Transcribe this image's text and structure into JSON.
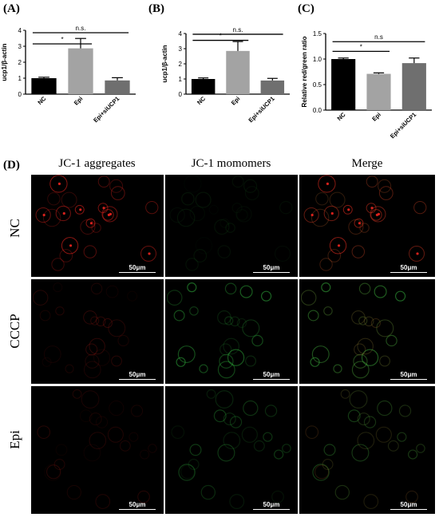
{
  "panel_letters": {
    "a": "(A)",
    "b": "(B)",
    "c": "(C)",
    "d": "(D)"
  },
  "chart_data": [
    {
      "type": "bar",
      "ylabel": "ucp1/β-actin",
      "categories": [
        "NC",
        "Epi",
        "Epi+siUCP1"
      ],
      "values": [
        1.0,
        2.87,
        0.86
      ],
      "errors": [
        0.06,
        0.62,
        0.17
      ],
      "bar_colors": [
        "#000000",
        "#a3a3a3",
        "#6f6f6f"
      ],
      "ylim": [
        0,
        4
      ],
      "yticks": [
        "0",
        "1",
        "2",
        "3",
        "4"
      ],
      "significance": [
        {
          "from": 0,
          "to": 1,
          "label": "*",
          "level": 3.15
        },
        {
          "from": 0,
          "to": 2,
          "label": "n.s.",
          "level": 3.85
        }
      ]
    },
    {
      "type": "bar",
      "ylabel": "ucp1/β-actin",
      "categories": [
        "NC",
        "Epi",
        "Epi+siUCP1"
      ],
      "values": [
        1.0,
        2.85,
        0.9
      ],
      "errors": [
        0.07,
        0.62,
        0.14
      ],
      "bar_colors": [
        "#000000",
        "#a3a3a3",
        "#6f6f6f"
      ],
      "ylim": [
        0,
        4
      ],
      "yticks": [
        "0",
        "1",
        "2",
        "3",
        "4"
      ],
      "significance": [
        {
          "from": 0,
          "to": 1,
          "label": "*",
          "level": 3.55
        },
        {
          "from": 0,
          "to": 2,
          "label": "n.s.",
          "level": 3.95
        }
      ]
    },
    {
      "type": "bar",
      "ylabel": "Relative red/green ratio",
      "categories": [
        "NC",
        "Epi",
        "Epi+siUCP1"
      ],
      "values": [
        1.0,
        0.71,
        0.92
      ],
      "errors": [
        0.02,
        0.02,
        0.1
      ],
      "bar_colors": [
        "#000000",
        "#a3a3a3",
        "#6f6f6f"
      ],
      "ylim": [
        0,
        1.5
      ],
      "yticks": [
        "0.0",
        "0.5",
        "1.0",
        "1.5"
      ],
      "significance": [
        {
          "from": 0,
          "to": 1,
          "label": "*",
          "level": 1.15
        },
        {
          "from": 0,
          "to": 2,
          "label": "n.s",
          "level": 1.34
        }
      ]
    }
  ],
  "microscopy": {
    "columns": [
      "JC-1 aggregates",
      "JC-1 momomers",
      "Merge"
    ],
    "rows": [
      "NC",
      "CCCP",
      "Epi"
    ],
    "scale_bar": "50μm",
    "red_color": "#e0231d",
    "green_color": "#2fae3c",
    "intensity": {
      "NC": {
        "red": 0.9,
        "green": 0.15
      },
      "CCCP": {
        "red": 0.3,
        "green": 0.75
      },
      "Epi": {
        "red": 0.25,
        "green": 0.45
      }
    }
  }
}
